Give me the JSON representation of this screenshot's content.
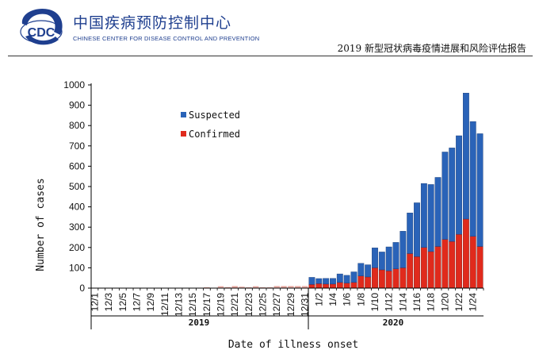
{
  "header": {
    "logo_text": "CDC",
    "cn_name": "中国疾病预防控制中心",
    "en_name": "CHINESE CENTER FOR DISEASE CONTROL AND PREVENTION",
    "report_title": "2019 新型冠状病毒疫情进展和风险评估报告"
  },
  "colors": {
    "suspected": "#2a63b8",
    "confirmed": "#e02a1c",
    "early_suspected": "#e6a39b",
    "brand": "#1f3f8f"
  },
  "chart_data": {
    "type": "bar",
    "stacked": true,
    "xlabel": "Date of illness onset",
    "ylabel": "Number of cases",
    "ylim": [
      0,
      1000
    ],
    "yticks": [
      0,
      100,
      200,
      300,
      400,
      500,
      600,
      700,
      800,
      900,
      1000
    ],
    "legend_position": "top-left",
    "categories": [
      "12/1",
      "12/2",
      "12/3",
      "12/4",
      "12/5",
      "12/6",
      "12/7",
      "12/8",
      "12/9",
      "12/10",
      "12/11",
      "12/12",
      "12/13",
      "12/14",
      "12/15",
      "12/16",
      "12/17",
      "12/18",
      "12/19",
      "12/20",
      "12/21",
      "12/22",
      "12/23",
      "12/24",
      "12/25",
      "12/26",
      "12/27",
      "12/28",
      "12/29",
      "12/30",
      "12/31",
      "1/1",
      "1/2",
      "1/3",
      "1/4",
      "1/5",
      "1/6",
      "1/7",
      "1/8",
      "1/9",
      "1/10",
      "1/11",
      "1/12",
      "1/13",
      "1/14",
      "1/15",
      "1/16",
      "1/17",
      "1/18",
      "1/19",
      "1/20",
      "1/21",
      "1/22",
      "1/23",
      "1/24",
      "1/25"
    ],
    "tick_labels": [
      "12/1",
      "12/3",
      "12/5",
      "12/7",
      "12/9",
      "12/11",
      "12/13",
      "12/15",
      "12/17",
      "12/19",
      "12/21",
      "12/23",
      "12/25",
      "12/27",
      "12/29",
      "12/31",
      "1/2",
      "1/4",
      "1/6",
      "1/8",
      "1/10",
      "1/12",
      "1/14",
      "1/16",
      "1/18",
      "1/20",
      "1/22",
      "1/24"
    ],
    "series": [
      {
        "name": "Confirmed",
        "values": [
          1,
          0,
          0,
          0,
          1,
          0,
          0,
          1,
          0,
          1,
          1,
          0,
          1,
          0,
          1,
          1,
          2,
          1,
          3,
          2,
          4,
          3,
          2,
          3,
          2,
          2,
          3,
          4,
          3,
          4,
          5,
          18,
          22,
          20,
          20,
          28,
          25,
          28,
          60,
          55,
          100,
          90,
          85,
          95,
          100,
          170,
          155,
          200,
          180,
          205,
          240,
          230,
          265,
          340,
          255,
          205
        ]
      },
      {
        "name": "Suspected",
        "values": [
          0,
          0,
          0,
          0,
          0,
          0,
          0,
          0,
          0,
          0,
          0,
          0,
          0,
          0,
          0,
          1,
          2,
          1,
          6,
          3,
          6,
          4,
          2,
          6,
          2,
          2,
          7,
          6,
          7,
          6,
          5,
          35,
          25,
          28,
          28,
          42,
          38,
          52,
          62,
          60,
          98,
          88,
          118,
          130,
          180,
          200,
          265,
          315,
          330,
          340,
          430,
          460,
          485,
          620,
          565,
          555
        ]
      }
    ],
    "groups": [
      {
        "label": "2019"
      },
      {
        "label": "2020"
      }
    ]
  }
}
